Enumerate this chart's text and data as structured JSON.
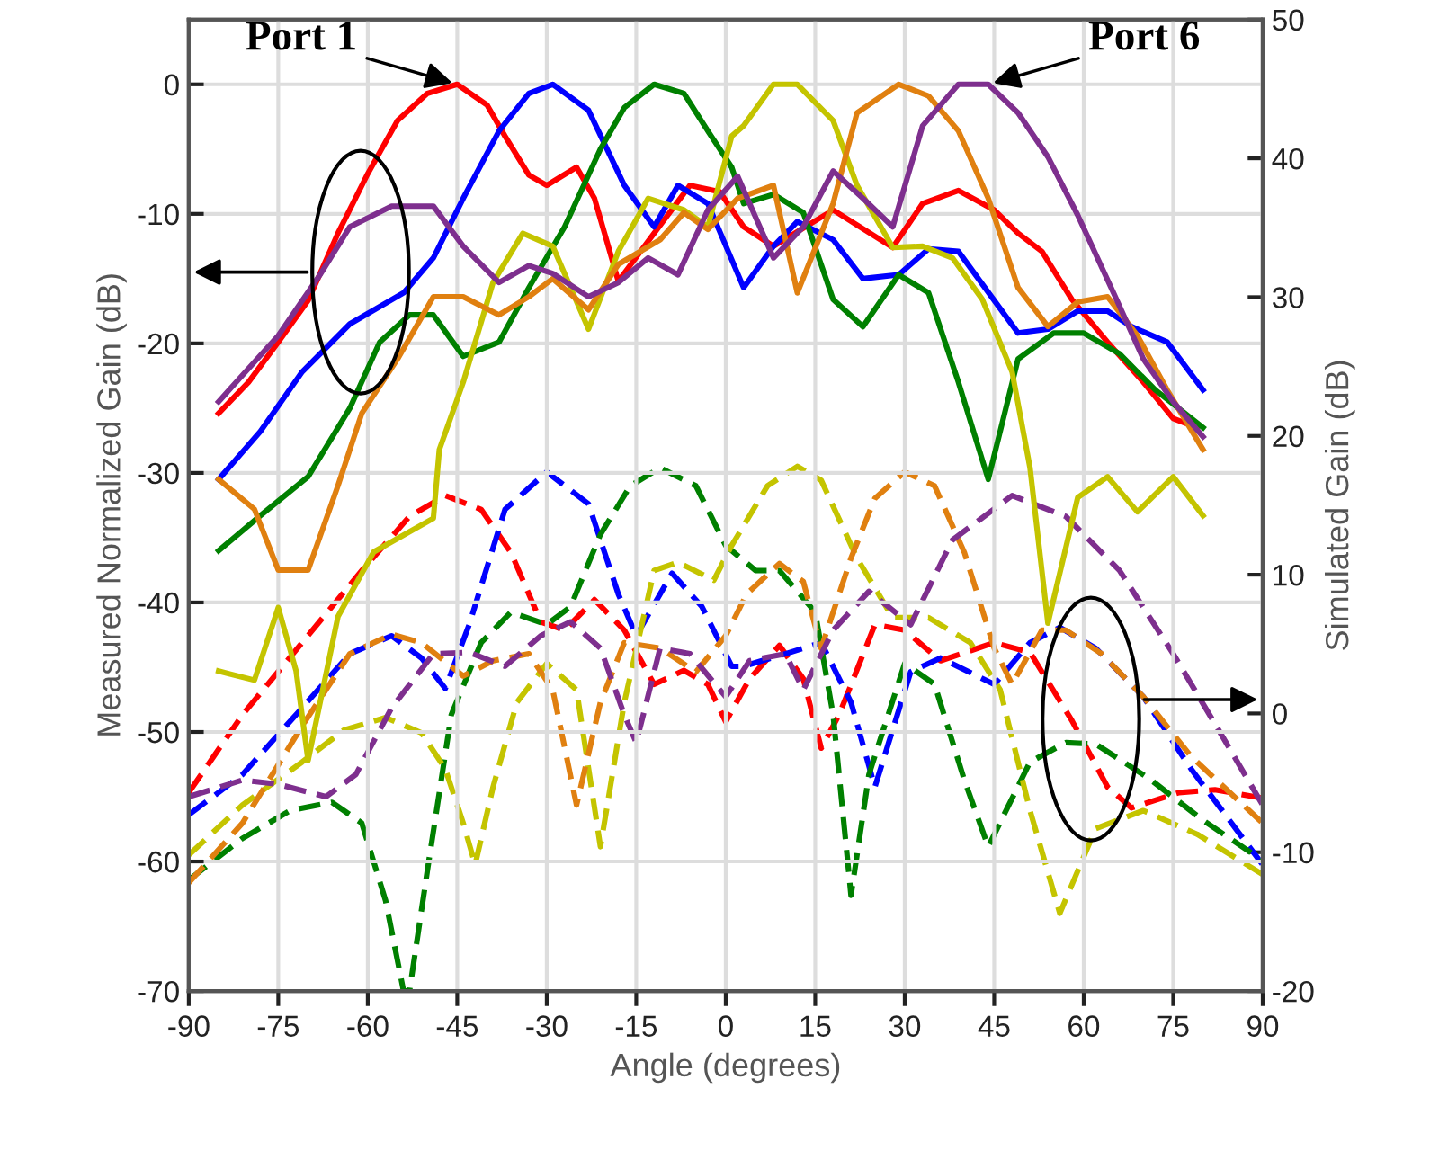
{
  "chart_data": {
    "type": "line",
    "xlabel": "Angle (degrees)",
    "ylabel": "Measured Normalized Gain (dB)",
    "y2label": "Simulated Gain (dB)",
    "xlim": [
      -90,
      90
    ],
    "xticks": [
      -90,
      -75,
      -60,
      -45,
      -30,
      -15,
      0,
      15,
      30,
      45,
      60,
      75,
      90
    ],
    "ylim": [
      -70,
      5
    ],
    "yticks": [
      -70,
      -60,
      -50,
      -40,
      -30,
      -20,
      -10,
      0
    ],
    "y2lim": [
      -20,
      50
    ],
    "y2ticks": [
      -20,
      -10,
      0,
      10,
      20,
      30,
      40,
      50
    ],
    "grid": true,
    "marker": "none",
    "annotations": [
      {
        "text": "Port 1",
        "x": -45,
        "y": 0
      },
      {
        "text": "Port 6",
        "x": 44,
        "y": 0
      }
    ],
    "series": [
      {
        "color": "#ff0000",
        "line_style": "solid",
        "x": [
          -85,
          -80,
          -75,
          -70,
          -65,
          -60,
          -55,
          -50,
          -45,
          -40,
          -37,
          -33,
          -30,
          -25,
          -22,
          -18,
          -12,
          -6,
          -1,
          3,
          8,
          18,
          28,
          33,
          39,
          45,
          49,
          53,
          58,
          64,
          70,
          75,
          79
        ],
        "values": [
          -25.4,
          -23,
          -19.9,
          -16.7,
          -11.5,
          -6.9,
          -2.8,
          -0.7,
          0,
          -1.6,
          -4,
          -7,
          -7.8,
          -6.4,
          -8.8,
          -15.2,
          -11.5,
          -7.8,
          -8.3,
          -11,
          -12.5,
          -9.7,
          -12.6,
          -9.2,
          -8.2,
          -9.7,
          -11.5,
          -12.9,
          -16.6,
          -19.9,
          -23,
          -25.8,
          -26.5
        ]
      },
      {
        "color": "#0000ff",
        "line_style": "solid",
        "x": [
          -85,
          -78,
          -71,
          -63,
          -54,
          -49,
          -44,
          -38,
          -33,
          -29,
          -23,
          -17,
          -12,
          -8,
          -3,
          3,
          8,
          12,
          18,
          23,
          29,
          34,
          39,
          49,
          54,
          59,
          64,
          68,
          74,
          80
        ],
        "values": [
          -30.5,
          -26.8,
          -22.2,
          -18.5,
          -16.1,
          -13.4,
          -8.8,
          -3.6,
          -0.7,
          0,
          -2,
          -7.8,
          -11,
          -7.8,
          -9.2,
          -15.7,
          -12.5,
          -10.6,
          -12,
          -15,
          -14.7,
          -12.7,
          -12.9,
          -19.2,
          -18.9,
          -17.5,
          -17.5,
          -18.7,
          -19.9,
          -23.6
        ]
      },
      {
        "color": "#008000",
        "line_style": "solid",
        "x": [
          -85,
          -78,
          -70,
          -63,
          -58,
          -53,
          -49,
          -44,
          -38,
          -33,
          -27,
          -21,
          -17,
          -12,
          -7,
          -3,
          1,
          3,
          8,
          13,
          18,
          23,
          29,
          34,
          39,
          44,
          49,
          55,
          60,
          66,
          72,
          80
        ],
        "values": [
          -36,
          -33.3,
          -30.3,
          -25,
          -19.9,
          -17.8,
          -17.8,
          -21,
          -19.9,
          -15.7,
          -11,
          -5,
          -1.8,
          0,
          -0.7,
          -3.6,
          -6.4,
          -9.2,
          -8.5,
          -9.9,
          -16.6,
          -18.7,
          -14.7,
          -16.1,
          -23,
          -30.5,
          -21.2,
          -19.2,
          -19.2,
          -20.8,
          -23.6,
          -26.5
        ]
      },
      {
        "color": "#c4c400",
        "line_style": "solid",
        "x": [
          -85,
          -79,
          -75,
          -72,
          -70,
          -65,
          -59,
          -49,
          -48,
          -44,
          -39,
          -34,
          -29,
          -23,
          -18,
          -13,
          -7,
          -3,
          1,
          3,
          8,
          12,
          18,
          22,
          28,
          33,
          38,
          43,
          48,
          51,
          54,
          59,
          64,
          69,
          75,
          80
        ],
        "values": [
          -45.3,
          -46,
          -40.4,
          -45.3,
          -52.2,
          -41.1,
          -36.1,
          -33.5,
          -28.2,
          -23,
          -15.3,
          -11.5,
          -12.5,
          -18.9,
          -12.9,
          -8.8,
          -9.7,
          -11,
          -4,
          -3.2,
          0,
          0,
          -2.8,
          -7.8,
          -12.6,
          -12.5,
          -13.4,
          -16.6,
          -22.2,
          -29.6,
          -41.6,
          -31.9,
          -30.3,
          -33,
          -30.3,
          -33.3
        ]
      },
      {
        "color": "#e08010",
        "line_style": "solid",
        "x": [
          -85,
          -79,
          -75,
          -70,
          -65,
          -61,
          -55,
          -49,
          -44,
          -38,
          -33,
          -29,
          -23,
          -18,
          -11,
          -7,
          -3,
          2,
          8,
          12,
          18,
          22,
          29,
          34,
          39,
          44,
          49,
          54,
          59,
          64,
          69,
          74,
          80
        ],
        "values": [
          -30.5,
          -32.8,
          -37.5,
          -37.5,
          -31,
          -25.4,
          -21.2,
          -16.4,
          -16.4,
          -17.8,
          -16.4,
          -15,
          -17.4,
          -13.9,
          -12,
          -9.9,
          -11.2,
          -8.8,
          -7.8,
          -16.1,
          -9.2,
          -2.2,
          0,
          -0.9,
          -3.6,
          -8.8,
          -15.7,
          -18.7,
          -16.8,
          -16.4,
          -19.4,
          -23.6,
          -28.2
        ]
      },
      {
        "color": "#7e2f8e",
        "line_style": "solid",
        "x": [
          -85,
          -75,
          -68,
          -63,
          -56,
          -49,
          -44,
          -38,
          -33,
          -29,
          -23,
          -18,
          -13,
          -8,
          -3,
          2,
          8,
          13,
          18,
          23,
          28,
          33,
          39,
          44,
          49,
          54,
          59,
          65,
          70,
          75,
          80
        ],
        "values": [
          -24.5,
          -19.4,
          -14.7,
          -11,
          -9.4,
          -9.4,
          -12.5,
          -15.3,
          -14,
          -14.6,
          -16.4,
          -15.3,
          -13.4,
          -14.7,
          -9.7,
          -7.1,
          -13.4,
          -11,
          -6.7,
          -8.8,
          -11,
          -3.2,
          0,
          0,
          -2.2,
          -5.6,
          -10.1,
          -16.1,
          -21.2,
          -24.5,
          -27.2
        ]
      },
      {
        "color": "#ff0000",
        "line_style": "dashed",
        "axis": "y2",
        "x": [
          -90,
          -81,
          -71,
          -61,
          -53,
          -47,
          -41,
          -36,
          -31,
          -27,
          -22,
          -17,
          -12,
          -7,
          -3,
          0,
          4,
          9,
          13,
          16,
          19,
          25,
          30,
          36,
          45,
          51,
          58,
          64,
          68,
          76,
          82,
          90
        ],
        "values": [
          -5.7,
          -0.1,
          5.1,
          10.3,
          14.2,
          15.7,
          14.7,
          11.6,
          6.6,
          6,
          8.2,
          6,
          2.1,
          3.1,
          2.1,
          -0.6,
          2.5,
          4.9,
          2.5,
          -2.5,
          -0.1,
          6.4,
          6,
          3.8,
          5.1,
          4.4,
          -0.5,
          -5.3,
          -6.8,
          -5.7,
          -5.5,
          -6.1
        ]
      },
      {
        "color": "#0000ff",
        "line_style": "dashed",
        "axis": "y2",
        "x": [
          -90,
          -81,
          -71,
          -63,
          -56,
          -51,
          -47,
          -43,
          -37,
          -30,
          -23,
          -18,
          -15,
          -9,
          -4,
          1,
          3,
          10,
          16,
          21,
          25,
          31,
          36,
          45,
          51,
          56,
          62,
          70,
          78,
          90
        ],
        "values": [
          -7.3,
          -4.4,
          0.4,
          4.3,
          5.6,
          4,
          1.8,
          6.4,
          14.7,
          17.4,
          15.1,
          8.6,
          5.6,
          10.1,
          7.7,
          3.4,
          3.4,
          4.3,
          5.1,
          0.8,
          -5.3,
          3,
          4,
          2.1,
          5.1,
          6.2,
          4.7,
          1.2,
          -4,
          -10.9
        ]
      },
      {
        "color": "#008000",
        "line_style": "dashed",
        "axis": "y2",
        "x": [
          -90,
          -81,
          -73,
          -66,
          -61,
          -57,
          -54,
          -53,
          -50,
          -46,
          -41,
          -36,
          -30,
          -26,
          -21,
          -16,
          -11,
          -5,
          0,
          5,
          9,
          15,
          18,
          21,
          24,
          30,
          35,
          40,
          44,
          51,
          57,
          62,
          71,
          80,
          90
        ],
        "values": [
          -12,
          -9,
          -7,
          -6.4,
          -7.9,
          -13.5,
          -20,
          -20,
          -11.3,
          -0.1,
          5.1,
          7.3,
          6.4,
          7.7,
          12.9,
          16.4,
          17.7,
          16.4,
          12.1,
          10.3,
          10.3,
          7.3,
          -0.1,
          -13.1,
          -4.4,
          3.6,
          2.1,
          -4.8,
          -9.6,
          -3.5,
          -2.1,
          -2.2,
          -4.7,
          -7.7,
          -10.6
        ]
      },
      {
        "color": "#c4c400",
        "line_style": "dashed",
        "axis": "y2",
        "x": [
          -90,
          -81,
          -71,
          -64,
          -57,
          -51,
          -47,
          -44,
          -42,
          -39,
          -35,
          -30,
          -25,
          -21,
          -17,
          -12,
          -8,
          -2,
          1,
          7,
          12,
          16,
          22,
          28,
          34,
          41,
          46,
          51,
          56,
          62,
          70,
          79,
          90
        ],
        "values": [
          -10.2,
          -6.6,
          -3.5,
          -1.2,
          -0.3,
          -1.4,
          -4,
          -7.9,
          -10.9,
          -5.3,
          0.8,
          3.6,
          1.7,
          -9.6,
          0.8,
          10.3,
          10.9,
          9.6,
          12.1,
          16.4,
          17.8,
          16.8,
          11.2,
          6.9,
          6.9,
          5.1,
          1.7,
          -7,
          -14.4,
          -8.3,
          -7,
          -8.7,
          -11.6
        ]
      },
      {
        "color": "#e08010",
        "line_style": "dashed",
        "axis": "y2",
        "x": [
          -90,
          -81,
          -71,
          -63,
          -56,
          -51,
          -44,
          -39,
          -33,
          -29,
          -25,
          -21,
          -17,
          -11,
          -5,
          0,
          3.5,
          9,
          13,
          16,
          21,
          25,
          30,
          35,
          40,
          45,
          48,
          53,
          57,
          63,
          70,
          78,
          90
        ],
        "values": [
          -12.2,
          -7.9,
          -0.9,
          4.3,
          5.7,
          5.1,
          2.7,
          3.8,
          4.3,
          1.7,
          -6.6,
          0.8,
          5.1,
          4.7,
          3,
          5.6,
          8.6,
          10.8,
          9.5,
          4.7,
          11.2,
          15.5,
          17.4,
          16.4,
          11.6,
          4.7,
          2.1,
          6,
          6,
          4.3,
          1.2,
          -3.1,
          -7.9
        ]
      },
      {
        "color": "#7e2f8e",
        "line_style": "dashed",
        "axis": "y2",
        "x": [
          -90,
          -81,
          -75,
          -67,
          -62,
          -56,
          -49,
          -43,
          -37,
          -31,
          -26,
          -21,
          -17,
          -15,
          -11,
          -6,
          0,
          4,
          10,
          13,
          18,
          24,
          31,
          38,
          48,
          57,
          66,
          75,
          84,
          90
        ],
        "values": [
          -6,
          -4.8,
          -5.1,
          -6,
          -4.4,
          0.4,
          4.3,
          4.4,
          3.4,
          5.6,
          6.6,
          4.7,
          -0.1,
          -2.1,
          4.7,
          4.3,
          1.2,
          3.8,
          4.3,
          1.7,
          6,
          8.8,
          6.4,
          12.5,
          15.7,
          14.2,
          10.3,
          4.3,
          -2.2,
          -6.6
        ]
      }
    ]
  }
}
